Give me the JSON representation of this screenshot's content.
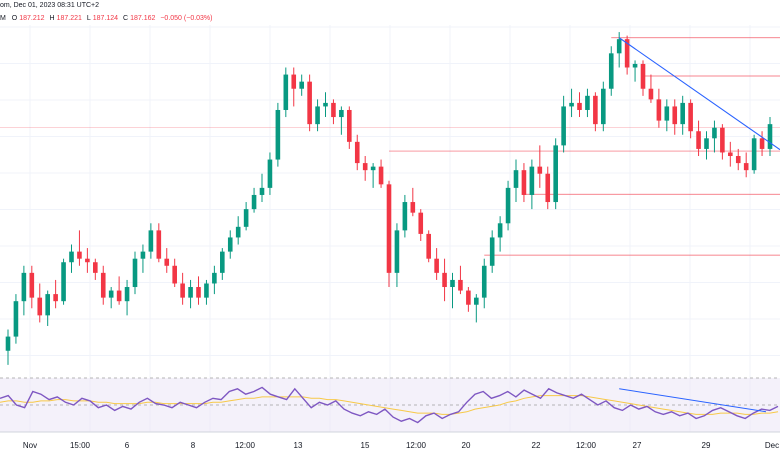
{
  "header": {
    "line1": "om, Dec 01, 2023 08:31 UTC+2",
    "line2": {
      "open_label": "O",
      "open": "187.212",
      "high_label": "H",
      "high": "187.221",
      "low_label": "L",
      "low": "187.124",
      "close_label": "C",
      "close": "187.162",
      "change": "−0.050 (−0.03%)"
    },
    "leading_label": "M"
  },
  "colors": {
    "up": "#089981",
    "down": "#f23645",
    "trendline": "#2962ff",
    "level_line": "#f23645",
    "rsi_line": "#7e57c2",
    "rsi_ma": "#f7c948",
    "rsi_band": "#ede7f6",
    "grid": "#f0f3fa"
  },
  "chart_data": {
    "type": "candlestick",
    "timeframe_note": "daily-ish candles, Nov 2023",
    "x_ticks": [
      "Nov",
      "15:00",
      "6",
      "8",
      "12:00",
      "13",
      "15",
      "12:00",
      "20",
      "22",
      "12:00",
      "27",
      "29",
      "Dec"
    ],
    "candles": [
      [
        183.3,
        183.6,
        183.1,
        183.5
      ],
      [
        183.5,
        184.1,
        183.4,
        184.0
      ],
      [
        184.0,
        184.5,
        183.8,
        184.4
      ],
      [
        184.4,
        184.5,
        183.9,
        184.05
      ],
      [
        184.05,
        184.25,
        183.7,
        183.8
      ],
      [
        183.8,
        184.15,
        183.65,
        184.1
      ],
      [
        184.1,
        184.3,
        183.9,
        184.0
      ],
      [
        184.0,
        184.6,
        183.95,
        184.55
      ],
      [
        184.55,
        184.8,
        184.4,
        184.7
      ],
      [
        184.7,
        185.0,
        184.5,
        184.6
      ],
      [
        184.6,
        184.75,
        184.4,
        184.55
      ],
      [
        184.55,
        184.6,
        184.3,
        184.4
      ],
      [
        184.4,
        184.5,
        183.95,
        184.05
      ],
      [
        184.05,
        184.2,
        183.9,
        184.15
      ],
      [
        184.15,
        184.35,
        183.95,
        184.0
      ],
      [
        184.0,
        184.3,
        183.8,
        184.2
      ],
      [
        184.2,
        184.7,
        184.1,
        184.6
      ],
      [
        184.6,
        184.8,
        184.4,
        184.7
      ],
      [
        184.7,
        185.1,
        184.6,
        185.0
      ],
      [
        185.0,
        185.1,
        184.55,
        184.6
      ],
      [
        184.6,
        184.75,
        184.4,
        184.5
      ],
      [
        184.5,
        184.6,
        184.2,
        184.25
      ],
      [
        184.25,
        184.4,
        183.95,
        184.05
      ],
      [
        184.05,
        184.3,
        183.9,
        184.2
      ],
      [
        184.2,
        184.35,
        183.95,
        184.05
      ],
      [
        184.05,
        184.3,
        183.95,
        184.25
      ],
      [
        184.25,
        184.5,
        184.1,
        184.4
      ],
      [
        184.4,
        184.75,
        184.3,
        184.7
      ],
      [
        184.7,
        185.0,
        184.6,
        184.9
      ],
      [
        184.9,
        185.2,
        184.8,
        185.05
      ],
      [
        185.05,
        185.4,
        185.0,
        185.3
      ],
      [
        185.3,
        185.6,
        185.25,
        185.5
      ],
      [
        185.5,
        185.8,
        185.4,
        185.6
      ],
      [
        185.6,
        186.1,
        185.5,
        186.0
      ],
      [
        186.0,
        186.8,
        185.9,
        186.7
      ],
      [
        186.7,
        187.3,
        186.6,
        187.2
      ],
      [
        187.2,
        187.3,
        186.75,
        187.0
      ],
      [
        187.0,
        187.2,
        186.9,
        187.1
      ],
      [
        187.1,
        187.2,
        186.4,
        186.5
      ],
      [
        186.5,
        186.85,
        186.4,
        186.75
      ],
      [
        186.75,
        186.95,
        186.6,
        186.8
      ],
      [
        186.8,
        186.85,
        186.5,
        186.6
      ],
      [
        186.6,
        186.75,
        186.35,
        186.7
      ],
      [
        186.7,
        186.75,
        186.15,
        186.25
      ],
      [
        186.25,
        186.35,
        185.85,
        185.95
      ],
      [
        185.95,
        186.05,
        185.7,
        185.85
      ],
      [
        185.85,
        185.95,
        185.6,
        185.9
      ],
      [
        185.9,
        186.0,
        185.6,
        185.65
      ],
      [
        185.65,
        185.7,
        184.2,
        184.4
      ],
      [
        184.4,
        185.1,
        184.2,
        185.0
      ],
      [
        185.0,
        185.5,
        184.9,
        185.4
      ],
      [
        185.4,
        185.6,
        185.2,
        185.25
      ],
      [
        185.25,
        185.3,
        184.85,
        184.95
      ],
      [
        184.95,
        185.0,
        184.55,
        184.6
      ],
      [
        184.6,
        184.75,
        184.3,
        184.4
      ],
      [
        184.4,
        184.6,
        184.0,
        184.2
      ],
      [
        184.2,
        184.4,
        183.9,
        184.3
      ],
      [
        184.3,
        184.5,
        184.1,
        184.15
      ],
      [
        184.15,
        184.2,
        183.85,
        183.95
      ],
      [
        183.95,
        184.1,
        183.7,
        184.05
      ],
      [
        184.05,
        184.6,
        183.9,
        184.5
      ],
      [
        184.5,
        185.0,
        184.4,
        184.9
      ],
      [
        184.9,
        185.2,
        184.7,
        185.1
      ],
      [
        185.1,
        185.7,
        185.0,
        185.6
      ],
      [
        185.6,
        186.0,
        185.4,
        185.85
      ],
      [
        185.85,
        185.95,
        185.4,
        185.5
      ],
      [
        185.5,
        186.0,
        185.3,
        185.9
      ],
      [
        185.9,
        186.2,
        185.6,
        185.8
      ],
      [
        185.8,
        185.9,
        185.3,
        185.4
      ],
      [
        185.4,
        186.3,
        185.3,
        186.2
      ],
      [
        186.2,
        186.9,
        186.1,
        186.75
      ],
      [
        186.75,
        187.0,
        186.6,
        186.8
      ],
      [
        186.8,
        186.95,
        186.6,
        186.7
      ],
      [
        186.7,
        187.0,
        186.6,
        186.9
      ],
      [
        186.9,
        186.95,
        186.4,
        186.5
      ],
      [
        186.5,
        187.1,
        186.4,
        187.0
      ],
      [
        187.0,
        187.6,
        186.9,
        187.5
      ],
      [
        187.5,
        187.8,
        187.3,
        187.7
      ],
      [
        187.7,
        187.75,
        187.2,
        187.3
      ],
      [
        187.3,
        187.4,
        187.1,
        187.35
      ],
      [
        187.35,
        187.4,
        186.9,
        187.0
      ],
      [
        187.0,
        187.2,
        186.8,
        186.85
      ],
      [
        186.85,
        187.0,
        186.45,
        186.55
      ],
      [
        186.55,
        186.85,
        186.4,
        186.75
      ],
      [
        186.75,
        186.85,
        186.35,
        186.5
      ],
      [
        186.5,
        186.9,
        186.35,
        186.8
      ],
      [
        186.8,
        186.85,
        186.3,
        186.4
      ],
      [
        186.4,
        186.55,
        186.05,
        186.15
      ],
      [
        186.15,
        186.4,
        186.0,
        186.3
      ],
      [
        186.3,
        186.55,
        186.1,
        186.45
      ],
      [
        186.45,
        186.5,
        186.0,
        186.1
      ],
      [
        186.1,
        186.25,
        185.9,
        186.05
      ],
      [
        186.05,
        186.15,
        185.85,
        185.95
      ],
      [
        185.95,
        186.1,
        185.75,
        185.85
      ],
      [
        185.85,
        186.35,
        185.8,
        186.3
      ],
      [
        186.3,
        186.4,
        186.05,
        186.15
      ],
      [
        186.15,
        186.6,
        186.05,
        186.5
      ]
    ],
    "price_range": [
      183.0,
      187.9
    ],
    "rsi": [
      55,
      57,
      50,
      48,
      60,
      58,
      54,
      56,
      52,
      50,
      55,
      53,
      48,
      50,
      46,
      49,
      47,
      52,
      55,
      51,
      50,
      48,
      52,
      50,
      48,
      52,
      55,
      54,
      60,
      62,
      58,
      60,
      63,
      58,
      56,
      54,
      62,
      55,
      48,
      52,
      50,
      53,
      47,
      44,
      42,
      45,
      43,
      47,
      41,
      38,
      40,
      37,
      42,
      44,
      40,
      43,
      45,
      52,
      58,
      60,
      55,
      57,
      60,
      56,
      61,
      58,
      55,
      62,
      59,
      57,
      55,
      58,
      54,
      50,
      53,
      48,
      46,
      50,
      47,
      49,
      45,
      43,
      45,
      42,
      44,
      40,
      42,
      46,
      48,
      45,
      42,
      40,
      44,
      47,
      46,
      49
    ],
    "rsi_ma": [
      52,
      53,
      53,
      52,
      52,
      53,
      53,
      54,
      54,
      53,
      53,
      53,
      52,
      52,
      51,
      51,
      51,
      51,
      52,
      52,
      51,
      51,
      51,
      51,
      51,
      51,
      52,
      52,
      53,
      54,
      55,
      55,
      56,
      56,
      56,
      56,
      56,
      56,
      55,
      55,
      54,
      54,
      53,
      52,
      51,
      50,
      49,
      48,
      47,
      46,
      45,
      44,
      44,
      44,
      43,
      43,
      44,
      45,
      47,
      48,
      49,
      50,
      52,
      53,
      55,
      56,
      57,
      57,
      57,
      57,
      57,
      57,
      56,
      55,
      54,
      53,
      52,
      51,
      50,
      49,
      48,
      47,
      46,
      45,
      44,
      43,
      43,
      43,
      44,
      44,
      44,
      43,
      43,
      44,
      44,
      45
    ],
    "rsi_range": [
      30,
      70
    ],
    "rsi_levels": [
      70,
      50,
      30
    ]
  }
}
